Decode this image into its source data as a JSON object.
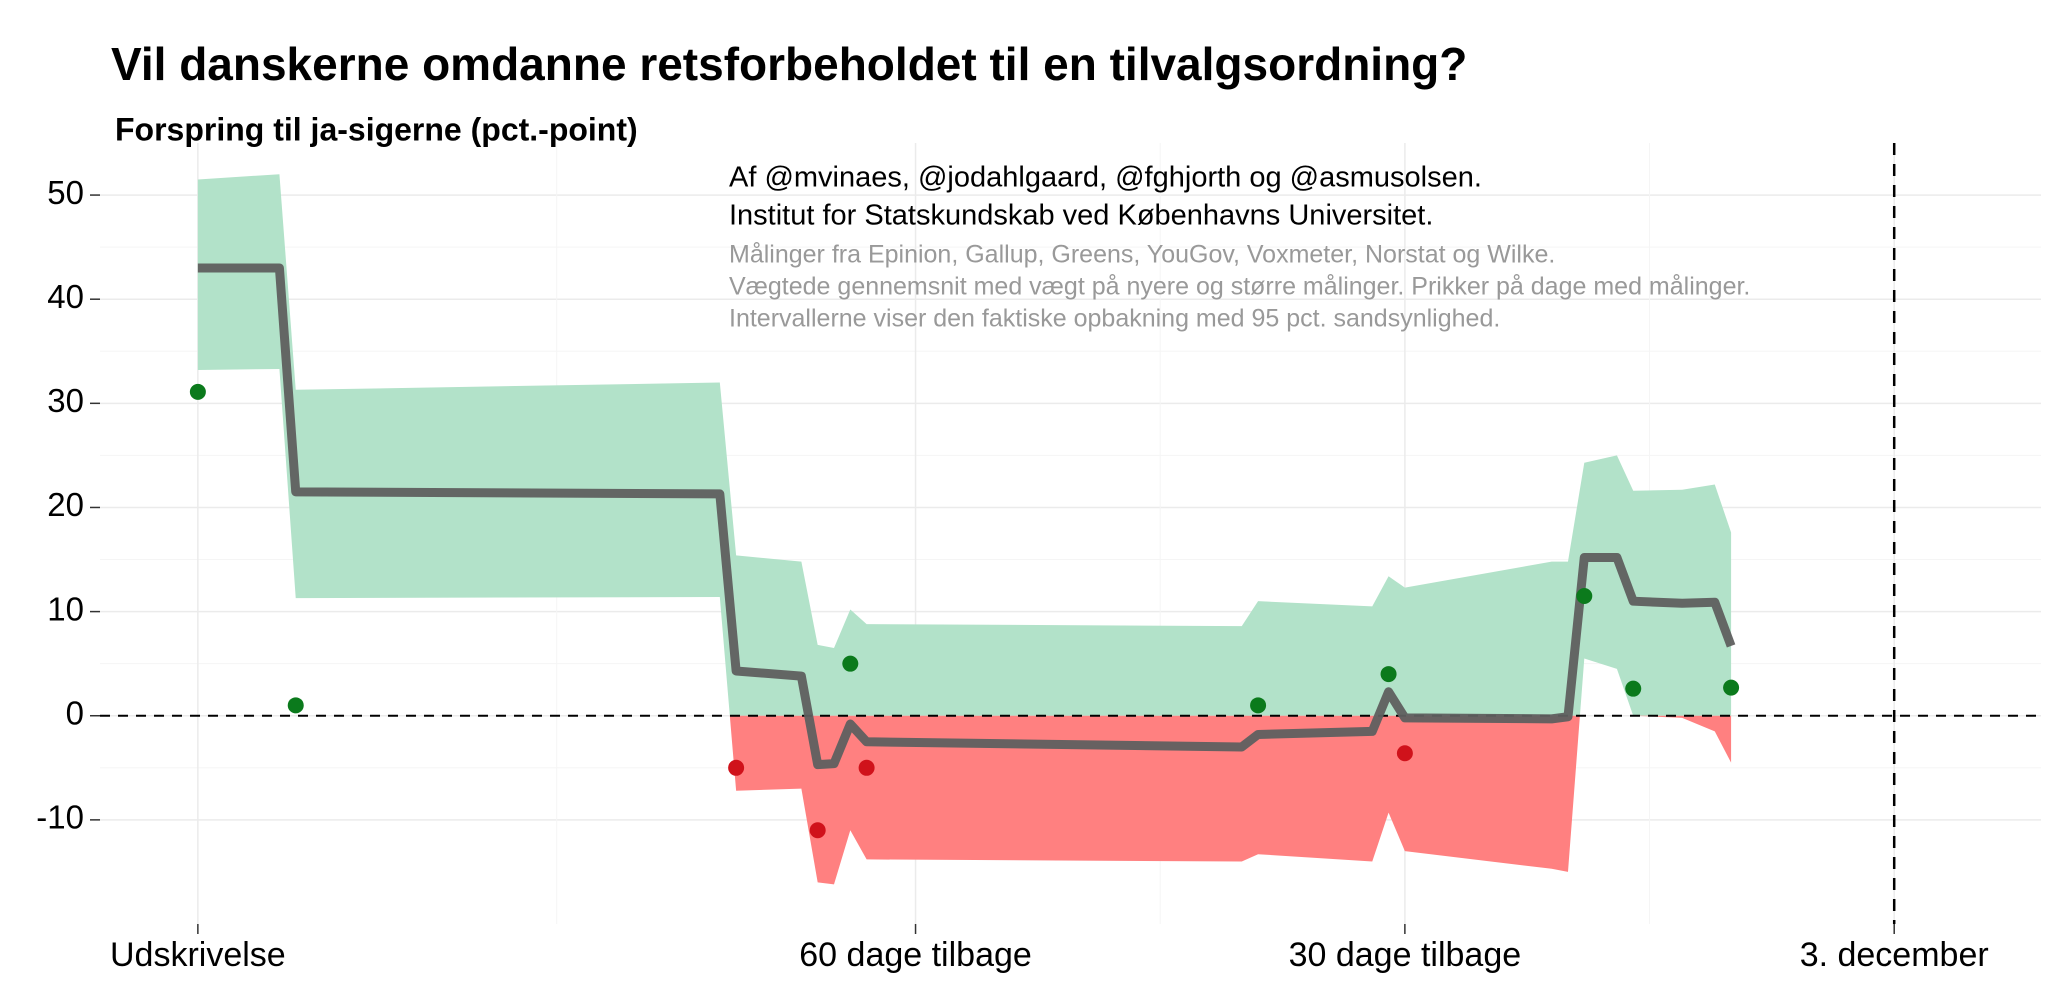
{
  "chart_data": {
    "type": "line",
    "title": "Vil danskerne omdanne retsforbeholdet til en tilvalgsordning?",
    "subtitle": "Forspring til ja-sigerne (pct.-point)",
    "annotations": [
      "Af @mvinaes, @jodahlgaard, @fghjorth og @asmusolsen.",
      "Institut for Statskundskab ved Københavns Universitet."
    ],
    "notes": [
      "Målinger fra Epinion, Gallup, Greens, YouGov, Voxmeter, Norstat og Wilke.",
      "Vægtede gennemsnit med vægt på nyere og større målinger. Prikker på dage med målinger.",
      "Intervallerne viser den faktiske opbakning med 95 pct. sandsynlighed."
    ],
    "xlim": [
      -110,
      9
    ],
    "xticks": [
      {
        "value": -104,
        "label": "Udskrivelse"
      },
      {
        "value": -60,
        "label": "60 dage tilbage"
      },
      {
        "value": -30,
        "label": "30 dage tilbage"
      },
      {
        "value": 0,
        "label": "3. december"
      }
    ],
    "ylim": [
      -20,
      55
    ],
    "yticks": [
      -10,
      0,
      10,
      20,
      30,
      40,
      50
    ],
    "grid": true,
    "x": [
      -104,
      -99,
      -98,
      -72,
      -71,
      -67,
      -66,
      -65,
      -64,
      -63,
      -40,
      -39,
      -32,
      -31,
      -30,
      -21,
      -20,
      -19,
      -17,
      -16,
      -13,
      -11,
      -10
    ],
    "mean": {
      "color": "#5f5f5f",
      "values": [
        43,
        43,
        21.5,
        21.3,
        4.3,
        3.8,
        -4.7,
        -4.6,
        -0.8,
        -2.5,
        -3,
        -1.8,
        -1.5,
        2.3,
        -0.2,
        -0.3,
        -0.1,
        15.2,
        15.2,
        11,
        10.8,
        10.9,
        6.7
      ]
    },
    "upper": [
      51.5,
      52,
      31.3,
      32,
      15.4,
      14.8,
      6.8,
      6.5,
      10.2,
      8.8,
      8.6,
      11,
      10.5,
      13.4,
      12.3,
      14.8,
      14.8,
      24.3,
      25,
      21.6,
      21.7,
      22.2,
      17.6
    ],
    "lower": [
      33.2,
      33.3,
      11.3,
      11.4,
      -7.2,
      -7,
      -16,
      -16.2,
      -11,
      -13.8,
      -14,
      -13.3,
      -14,
      -9.3,
      -13,
      -14.7,
      -15,
      5.5,
      4.5,
      0,
      -0.2,
      -1.5,
      -4.5
    ],
    "band_positive_color": "#b2e2c9",
    "band_negative_color": "#ff8080",
    "polls": {
      "x": [
        -104,
        -98,
        -71,
        -66,
        -64,
        -63,
        -39,
        -31,
        -30,
        -19,
        -16,
        -10
      ],
      "values": [
        31.1,
        1.0,
        -5.0,
        -11,
        5.0,
        -5.0,
        1.0,
        4.0,
        -3.6,
        11.5,
        2.6,
        2.7
      ]
    },
    "poll_positive_color": "#0b7a1c",
    "poll_negative_color": "#d0121b"
  }
}
